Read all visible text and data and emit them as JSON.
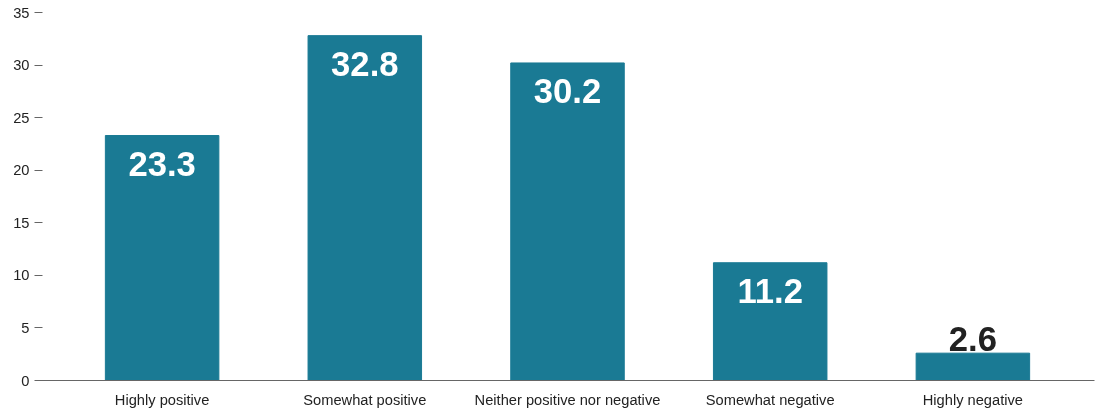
{
  "chart_data": {
    "type": "bar",
    "categories": [
      "Highly positive",
      "Somewhat positive",
      "Neither positive nor negative",
      "Somewhat negative",
      "Highly negative"
    ],
    "values": [
      23.3,
      32.8,
      30.2,
      11.2,
      2.6
    ],
    "color": "#1a7a94",
    "ylim": [
      0,
      35
    ],
    "yticks": [
      0,
      5,
      10,
      15,
      20,
      25,
      30,
      35
    ],
    "data_labels": true,
    "grid": false
  }
}
